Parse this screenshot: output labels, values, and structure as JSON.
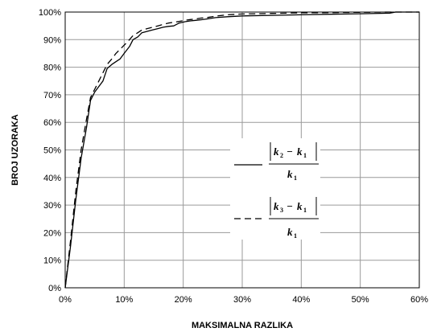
{
  "chart_data": {
    "type": "line",
    "xlabel": "MAKSIMALNA RAZLIKA",
    "ylabel": "BROJ UZORAKA",
    "xlim": [
      0,
      60
    ],
    "ylim": [
      0,
      100
    ],
    "x_ticks": [
      "0%",
      "10%",
      "20%",
      "30%",
      "40%",
      "50%",
      "60%"
    ],
    "y_ticks": [
      "0%",
      "10%",
      "20%",
      "30%",
      "40%",
      "50%",
      "60%",
      "70%",
      "80%",
      "90%",
      "100%"
    ],
    "grid": true,
    "legend": {
      "placement": "center-right",
      "entries": [
        {
          "style": "solid",
          "numerator_left": "k",
          "numerator_left_sub": "2",
          "numerator_right": "k",
          "numerator_right_sub": "1",
          "denominator": "k",
          "denominator_sub": "1"
        },
        {
          "style": "dashed",
          "numerator_left": "k",
          "numerator_left_sub": "3",
          "numerator_right": "k",
          "numerator_right_sub": "1",
          "denominator": "k",
          "denominator_sub": "1"
        }
      ]
    },
    "series": [
      {
        "style": "solid",
        "x": [
          0,
          0.9,
          1.8,
          2.7,
          3.6,
          4.3,
          5.0,
          5.7,
          6.4,
          7.1,
          7.9,
          8.6,
          9.3,
          10.0,
          10.9,
          11.5,
          12.3,
          13.0,
          13.9,
          14.8,
          15.7,
          16.6,
          17.5,
          18.4,
          19.3,
          20.3,
          21.2,
          22.1,
          23.0,
          24.0,
          25.5,
          27.5,
          30.0,
          35.0,
          40.0,
          45.0,
          50.0,
          55.0,
          56.0,
          60.0
        ],
        "y": [
          0,
          15,
          32,
          47,
          58,
          68,
          71,
          73,
          75,
          79.5,
          81,
          82,
          83,
          85,
          87.5,
          90,
          91,
          92.5,
          93,
          93.5,
          94,
          94.5,
          94.8,
          95,
          96,
          96.5,
          96.8,
          97,
          97.2,
          97.5,
          98,
          98.3,
          98.6,
          98.8,
          99,
          99.2,
          99.4,
          99.6,
          100,
          100
        ]
      },
      {
        "style": "dashed",
        "x": [
          0,
          0.9,
          1.8,
          2.7,
          3.6,
          4.3,
          5.0,
          5.7,
          6.4,
          7.1,
          7.9,
          8.6,
          9.3,
          10.0,
          10.9,
          11.5,
          12.3,
          13.0,
          13.9,
          14.8,
          15.7,
          16.6,
          17.5,
          18.4,
          19.3,
          20.3,
          21.2,
          22.1,
          23.0,
          24.0,
          25.5,
          27.5,
          30.0,
          35.0,
          40.0,
          45.0,
          50.0,
          55.0,
          56.0,
          60.0
        ],
        "y": [
          0,
          17,
          35,
          50,
          61,
          69,
          72,
          75,
          78,
          81,
          83,
          85,
          86.5,
          88,
          90,
          91.5,
          92.5,
          93.5,
          94,
          94.5,
          95,
          95.5,
          96,
          96.3,
          96.6,
          97,
          97.3,
          97.5,
          97.8,
          98,
          98.5,
          99,
          99.3,
          99.5,
          99.7,
          99.8,
          99.9,
          100,
          100,
          100
        ]
      }
    ]
  }
}
